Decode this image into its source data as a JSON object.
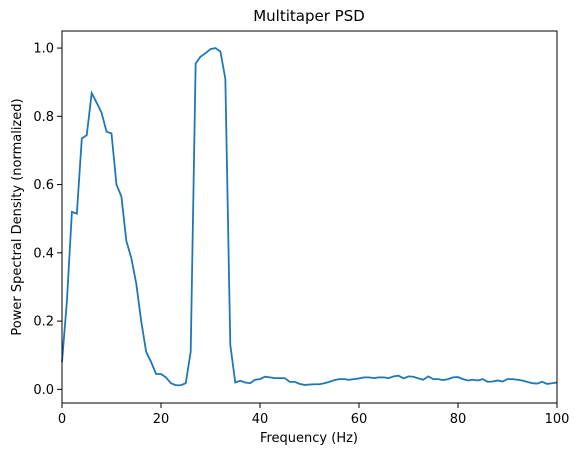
{
  "chart_data": {
    "type": "line",
    "title": "Multitaper PSD",
    "xlabel": "Frequency (Hz)",
    "ylabel": "Power Spectral Density (normalized)",
    "xlim": [
      0,
      100
    ],
    "ylim": [
      -0.04,
      1.05
    ],
    "xticks": [
      0,
      20,
      40,
      60,
      80,
      100
    ],
    "xtick_labels": [
      "0",
      "20",
      "40",
      "60",
      "80",
      "100"
    ],
    "yticks": [
      0.0,
      0.2,
      0.4,
      0.6,
      0.8,
      1.0
    ],
    "ytick_labels": [
      "0.0",
      "0.2",
      "0.4",
      "0.6",
      "0.8",
      "1.0"
    ],
    "grid": false,
    "line_color": "#1f77b4",
    "series": [
      {
        "x": [
          0,
          1,
          2,
          3,
          4,
          5,
          6,
          7,
          8,
          9,
          10,
          11,
          12,
          13,
          14,
          15,
          16,
          17,
          18,
          19,
          20,
          21,
          22,
          23,
          24,
          25,
          26,
          27,
          28,
          29,
          30,
          31,
          32,
          33,
          34,
          35,
          36,
          37,
          38,
          39,
          40,
          41,
          42,
          43,
          44,
          45,
          46,
          47,
          48,
          49,
          50,
          51,
          52,
          53,
          54,
          55,
          56,
          57,
          58,
          59,
          60,
          61,
          62,
          63,
          64,
          65,
          66,
          67,
          68,
          69,
          70,
          71,
          72,
          73,
          74,
          75,
          76,
          77,
          78,
          79,
          80,
          81,
          82,
          83,
          84,
          85,
          86,
          87,
          88,
          89,
          90,
          91,
          92,
          93,
          94,
          95,
          96,
          97,
          98,
          99,
          100
        ],
        "values": [
          0.08,
          0.26,
          0.52,
          0.515,
          0.735,
          0.745,
          0.868,
          0.84,
          0.81,
          0.755,
          0.75,
          0.6,
          0.565,
          0.435,
          0.385,
          0.31,
          0.2,
          0.11,
          0.08,
          0.045,
          0.045,
          0.035,
          0.018,
          0.012,
          0.012,
          0.018,
          0.11,
          0.955,
          0.975,
          0.985,
          0.997,
          1.0,
          0.99,
          0.91,
          0.13,
          0.02,
          0.025,
          0.02,
          0.018,
          0.028,
          0.03,
          0.037,
          0.035,
          0.033,
          0.033,
          0.033,
          0.022,
          0.022,
          0.016,
          0.013,
          0.014,
          0.015,
          0.015,
          0.018,
          0.022,
          0.027,
          0.03,
          0.03,
          0.028,
          0.03,
          0.032,
          0.035,
          0.035,
          0.033,
          0.035,
          0.035,
          0.033,
          0.038,
          0.04,
          0.032,
          0.038,
          0.037,
          0.032,
          0.028,
          0.038,
          0.03,
          0.03,
          0.027,
          0.03,
          0.035,
          0.036,
          0.03,
          0.026,
          0.028,
          0.026,
          0.03,
          0.022,
          0.023,
          0.026,
          0.023,
          0.03,
          0.03,
          0.028,
          0.026,
          0.022,
          0.018,
          0.017,
          0.022,
          0.016,
          0.018,
          0.02
        ]
      }
    ]
  }
}
